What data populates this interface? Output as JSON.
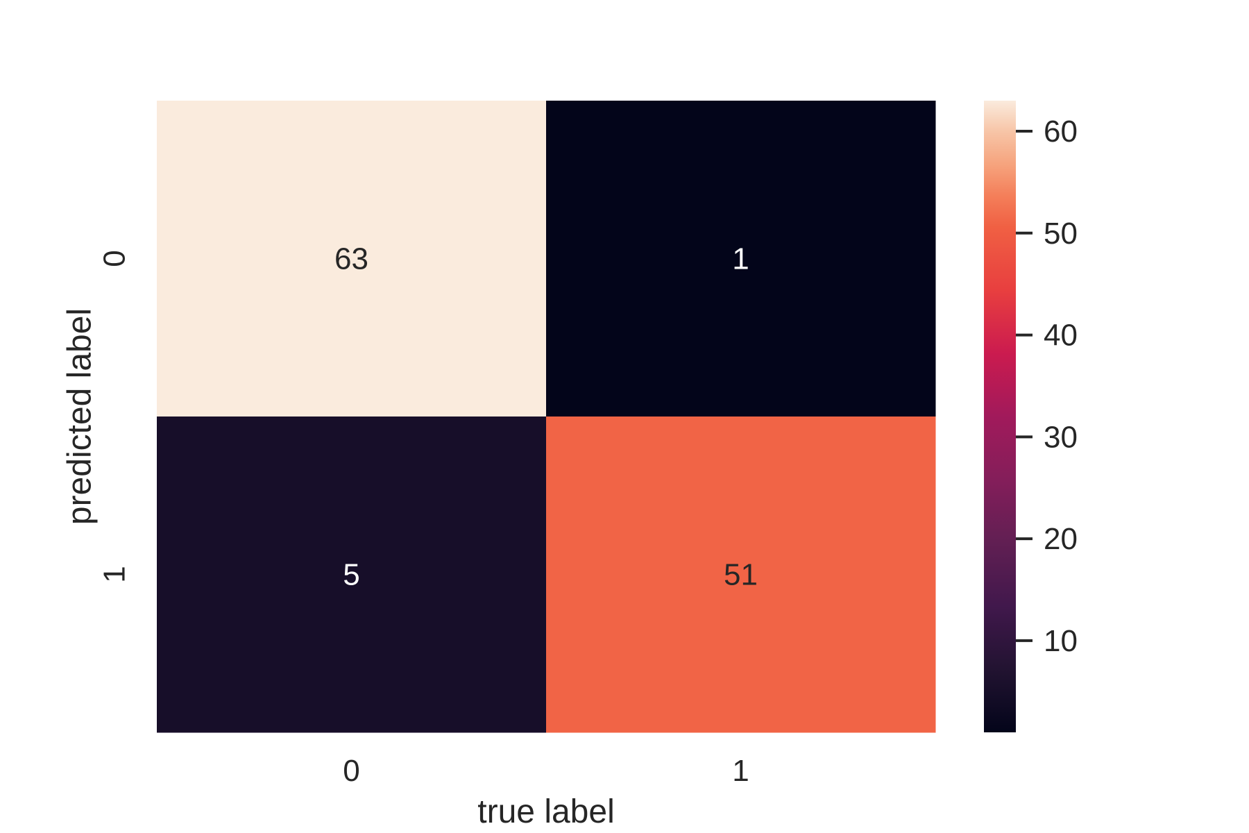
{
  "chart_data": {
    "type": "heatmap",
    "title": "",
    "xlabel": "true label",
    "ylabel": "predicted label",
    "x_categories": [
      "0",
      "1"
    ],
    "y_categories": [
      "0",
      "1"
    ],
    "matrix": [
      [
        63,
        1
      ],
      [
        5,
        51
      ]
    ],
    "annotations": [
      [
        "63",
        "1"
      ],
      [
        "5",
        "51"
      ]
    ],
    "colormap": "rocket",
    "colorbar": {
      "range": [
        1,
        63
      ],
      "ticks": [
        10,
        20,
        30,
        40,
        50,
        60
      ],
      "tick_labels": [
        "10",
        "20",
        "30",
        "40",
        "50",
        "60"
      ]
    }
  },
  "colors": {
    "tick_text": "#262626",
    "light_annotation": "#ffffff",
    "dark_annotation": "#262626"
  }
}
